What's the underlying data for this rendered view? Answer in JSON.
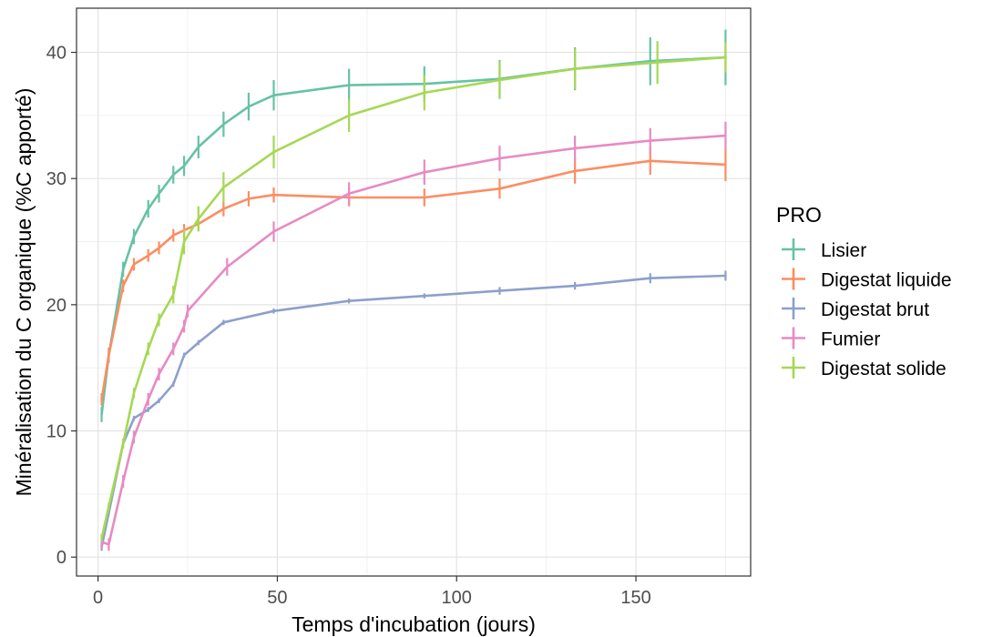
{
  "chart_data": {
    "type": "line",
    "title": "",
    "xlabel": "Temps d'incubation (jours)",
    "ylabel": "Minéralisation du C organique (%C apporté)",
    "xlim": [
      -6,
      182
    ],
    "ylim": [
      -1.5,
      43.5
    ],
    "xticks": [
      0,
      50,
      100,
      150
    ],
    "yticks": [
      0,
      10,
      20,
      30,
      40
    ],
    "grid": true,
    "legend": {
      "title": "PRO",
      "position": "right"
    },
    "series": [
      {
        "name": "Lisier",
        "color": "#66C2A5",
        "points": [
          {
            "x": 1,
            "y": 11.3,
            "err": 0.6
          },
          {
            "x": 3,
            "y": 16.0,
            "err": 0.6
          },
          {
            "x": 7,
            "y": 22.8,
            "err": 0.6
          },
          {
            "x": 10,
            "y": 25.4,
            "err": 0.6
          },
          {
            "x": 14,
            "y": 27.6,
            "err": 0.7
          },
          {
            "x": 17,
            "y": 28.8,
            "err": 0.7
          },
          {
            "x": 21,
            "y": 30.3,
            "err": 0.7
          },
          {
            "x": 24,
            "y": 31.0,
            "err": 0.8
          },
          {
            "x": 28,
            "y": 32.5,
            "err": 0.9
          },
          {
            "x": 35,
            "y": 34.3,
            "err": 1.0
          },
          {
            "x": 42,
            "y": 35.7,
            "err": 1.1
          },
          {
            "x": 49,
            "y": 36.6,
            "err": 1.2
          },
          {
            "x": 70,
            "y": 37.4,
            "err": 1.3
          },
          {
            "x": 91,
            "y": 37.5,
            "err": 1.4
          },
          {
            "x": 112,
            "y": 37.9,
            "err": 1.5
          },
          {
            "x": 133,
            "y": 38.7,
            "err": 1.7
          },
          {
            "x": 154,
            "y": 39.3,
            "err": 1.9
          },
          {
            "x": 175,
            "y": 39.6,
            "err": 2.2
          }
        ]
      },
      {
        "name": "Digestat liquide",
        "color": "#FC8D62",
        "points": [
          {
            "x": 1,
            "y": 12.5,
            "err": 0.5
          },
          {
            "x": 3,
            "y": 16.0,
            "err": 0.5
          },
          {
            "x": 7,
            "y": 21.5,
            "err": 0.5
          },
          {
            "x": 10,
            "y": 23.2,
            "err": 0.5
          },
          {
            "x": 14,
            "y": 23.9,
            "err": 0.5
          },
          {
            "x": 17,
            "y": 24.5,
            "err": 0.5
          },
          {
            "x": 21,
            "y": 25.5,
            "err": 0.5
          },
          {
            "x": 24,
            "y": 25.9,
            "err": 0.5
          },
          {
            "x": 28,
            "y": 26.4,
            "err": 0.5
          },
          {
            "x": 35,
            "y": 27.6,
            "err": 0.6
          },
          {
            "x": 42,
            "y": 28.4,
            "err": 0.6
          },
          {
            "x": 49,
            "y": 28.7,
            "err": 0.6
          },
          {
            "x": 70,
            "y": 28.5,
            "err": 0.7
          },
          {
            "x": 91,
            "y": 28.5,
            "err": 0.7
          },
          {
            "x": 112,
            "y": 29.2,
            "err": 0.8
          },
          {
            "x": 133,
            "y": 30.6,
            "err": 1.0
          },
          {
            "x": 154,
            "y": 31.4,
            "err": 1.1
          },
          {
            "x": 175,
            "y": 31.1,
            "err": 1.3
          }
        ]
      },
      {
        "name": "Digestat brut",
        "color": "#8DA0CB",
        "points": [
          {
            "x": 1,
            "y": 0.8,
            "err": 0.3
          },
          {
            "x": 3,
            "y": 3.5,
            "err": 0.2
          },
          {
            "x": 7,
            "y": 9.0,
            "err": 0.2
          },
          {
            "x": 10,
            "y": 11.0,
            "err": 0.2
          },
          {
            "x": 14,
            "y": 11.7,
            "err": 0.2
          },
          {
            "x": 17,
            "y": 12.4,
            "err": 0.2
          },
          {
            "x": 21,
            "y": 13.7,
            "err": 0.2
          },
          {
            "x": 24,
            "y": 16.0,
            "err": 0.2
          },
          {
            "x": 28,
            "y": 17.0,
            "err": 0.2
          },
          {
            "x": 35,
            "y": 18.6,
            "err": 0.2
          },
          {
            "x": 49,
            "y": 19.5,
            "err": 0.2
          },
          {
            "x": 70,
            "y": 20.3,
            "err": 0.2
          },
          {
            "x": 91,
            "y": 20.7,
            "err": 0.2
          },
          {
            "x": 112,
            "y": 21.1,
            "err": 0.3
          },
          {
            "x": 133,
            "y": 21.5,
            "err": 0.3
          },
          {
            "x": 154,
            "y": 22.1,
            "err": 0.4
          },
          {
            "x": 175,
            "y": 22.3,
            "err": 0.4
          }
        ]
      },
      {
        "name": "Fumier",
        "color": "#E78AC3",
        "points": [
          {
            "x": 1,
            "y": 1.2,
            "err": 0.5
          },
          {
            "x": 3,
            "y": 1.0,
            "err": 0.5
          },
          {
            "x": 7,
            "y": 6.0,
            "err": 0.5
          },
          {
            "x": 10,
            "y": 9.5,
            "err": 0.5
          },
          {
            "x": 14,
            "y": 12.5,
            "err": 0.5
          },
          {
            "x": 17,
            "y": 14.5,
            "err": 0.5
          },
          {
            "x": 21,
            "y": 16.5,
            "err": 0.5
          },
          {
            "x": 24,
            "y": 18.3,
            "err": 0.5
          },
          {
            "x": 25,
            "y": 19.5,
            "err": 0.5
          },
          {
            "x": 36,
            "y": 23.0,
            "err": 0.7
          },
          {
            "x": 49,
            "y": 25.8,
            "err": 0.8
          },
          {
            "x": 70,
            "y": 28.8,
            "err": 0.9
          },
          {
            "x": 91,
            "y": 30.5,
            "err": 1.0
          },
          {
            "x": 112,
            "y": 31.6,
            "err": 1.0
          },
          {
            "x": 133,
            "y": 32.4,
            "err": 1.0
          },
          {
            "x": 154,
            "y": 33.0,
            "err": 1.0
          },
          {
            "x": 175,
            "y": 33.4,
            "err": 1.1
          }
        ]
      },
      {
        "name": "Digestat solide",
        "color": "#A6D854",
        "points": [
          {
            "x": 1,
            "y": 1.5,
            "err": 0.3
          },
          {
            "x": 3,
            "y": 4.0,
            "err": 0.3
          },
          {
            "x": 7,
            "y": 9.0,
            "err": 0.4
          },
          {
            "x": 10,
            "y": 13.0,
            "err": 0.4
          },
          {
            "x": 14,
            "y": 16.5,
            "err": 0.5
          },
          {
            "x": 17,
            "y": 18.8,
            "err": 0.5
          },
          {
            "x": 21,
            "y": 20.8,
            "err": 0.7
          },
          {
            "x": 24,
            "y": 25.0,
            "err": 1.0
          },
          {
            "x": 28,
            "y": 26.8,
            "err": 1.0
          },
          {
            "x": 35,
            "y": 29.3,
            "err": 1.2
          },
          {
            "x": 49,
            "y": 32.1,
            "err": 1.3
          },
          {
            "x": 70,
            "y": 35.0,
            "err": 1.3
          },
          {
            "x": 91,
            "y": 36.8,
            "err": 1.4
          },
          {
            "x": 112,
            "y": 37.8,
            "err": 1.5
          },
          {
            "x": 133,
            "y": 38.7,
            "err": 1.6
          },
          {
            "x": 156,
            "y": 39.2,
            "err": 1.7
          },
          {
            "x": 175,
            "y": 39.6,
            "err": 1.2
          }
        ]
      }
    ]
  }
}
